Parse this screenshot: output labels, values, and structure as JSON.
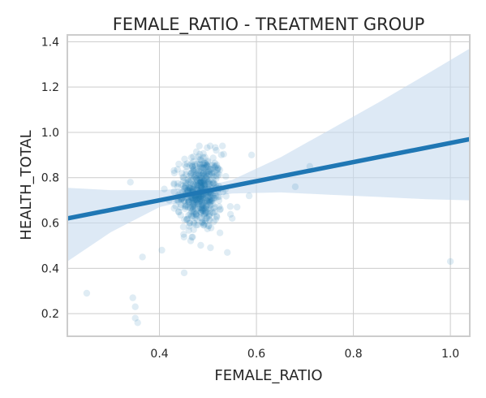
{
  "chart_data": {
    "type": "scatter",
    "title": "FEMALE_RATIO - TREATMENT GROUP",
    "xlabel": "FEMALE_RATIO",
    "ylabel": "HEALTH_TOTAL",
    "xlim": [
      0.21,
      1.04
    ],
    "ylim": [
      0.1,
      1.43
    ],
    "xticks": [
      0.4,
      0.6,
      0.8,
      1.0
    ],
    "yticks": [
      0.2,
      0.4,
      0.6,
      0.8,
      1.0,
      1.2,
      1.4
    ],
    "grid": true,
    "legend": "none",
    "colors": {
      "points": "#1f77b4",
      "regression_line": "#1f77b4",
      "confidence_band": "#c6dbef"
    },
    "regression": {
      "x": [
        0.21,
        1.04
      ],
      "y": [
        0.62,
        0.97
      ]
    },
    "confidence_band": {
      "x": [
        0.21,
        0.3,
        0.4,
        0.48,
        0.55,
        0.65,
        0.75,
        0.85,
        0.95,
        1.04
      ],
      "lower": [
        0.43,
        0.56,
        0.67,
        0.71,
        0.73,
        0.735,
        0.725,
        0.715,
        0.705,
        0.7
      ],
      "upper": [
        0.755,
        0.745,
        0.745,
        0.755,
        0.79,
        0.89,
        1.01,
        1.13,
        1.255,
        1.37
      ]
    },
    "outliers": [
      {
        "x": 0.25,
        "y": 0.29
      },
      {
        "x": 0.34,
        "y": 0.78
      },
      {
        "x": 0.345,
        "y": 0.27
      },
      {
        "x": 0.35,
        "y": 0.23
      },
      {
        "x": 0.35,
        "y": 0.18
      },
      {
        "x": 0.355,
        "y": 0.16
      },
      {
        "x": 0.365,
        "y": 0.45
      },
      {
        "x": 0.405,
        "y": 0.48
      },
      {
        "x": 0.41,
        "y": 0.75
      },
      {
        "x": 0.42,
        "y": 0.7
      },
      {
        "x": 0.43,
        "y": 0.77
      },
      {
        "x": 0.44,
        "y": 0.86
      },
      {
        "x": 0.44,
        "y": 0.65
      },
      {
        "x": 0.45,
        "y": 0.55
      },
      {
        "x": 0.53,
        "y": 0.94
      },
      {
        "x": 0.54,
        "y": 0.47
      },
      {
        "x": 0.55,
        "y": 0.62
      },
      {
        "x": 0.56,
        "y": 0.67
      },
      {
        "x": 0.585,
        "y": 0.72
      },
      {
        "x": 0.59,
        "y": 0.9
      },
      {
        "x": 0.68,
        "y": 0.76
      },
      {
        "x": 0.71,
        "y": 0.85
      },
      {
        "x": 1.0,
        "y": 0.43
      }
    ],
    "cluster": {
      "n": 520,
      "x_mean": 0.485,
      "x_sd": 0.022,
      "y_mean": 0.735,
      "y_sd": 0.085
    }
  }
}
